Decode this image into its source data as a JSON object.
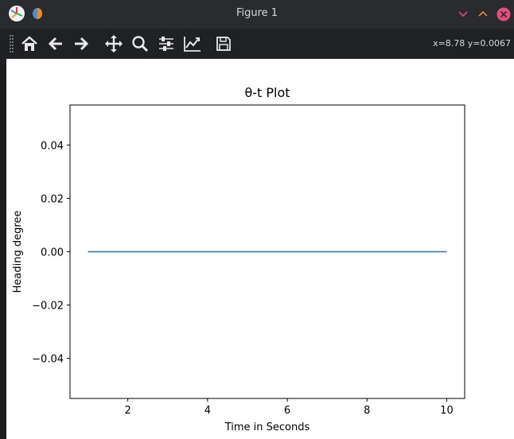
{
  "window": {
    "title": "Figure 1"
  },
  "toolbar": {
    "buttons": [
      {
        "name": "home-icon",
        "label": "Home"
      },
      {
        "name": "back-icon",
        "label": "Back"
      },
      {
        "name": "forward-icon",
        "label": "Forward"
      },
      {
        "name": "pan-icon",
        "label": "Pan"
      },
      {
        "name": "zoom-icon",
        "label": "Zoom"
      },
      {
        "name": "subplots-icon",
        "label": "Configure subplots"
      },
      {
        "name": "axes-icon",
        "label": "Edit axis"
      },
      {
        "name": "save-icon",
        "label": "Save"
      }
    ],
    "coords": "x=8.78 y=0.0067"
  },
  "colors": {
    "line": "#1f77b4",
    "titlebar": "#2a2b2e",
    "toolbar": "#202124",
    "close": "#d9534f"
  },
  "chart_data": {
    "type": "line",
    "title": "θ-t Plot",
    "xlabel": "Time in Seconds",
    "ylabel": "Heading degree",
    "xlim": [
      0.55,
      10.45
    ],
    "ylim": [
      -0.055,
      0.055
    ],
    "x_ticks": [
      2,
      4,
      6,
      8,
      10
    ],
    "x_tick_labels": [
      "2",
      "4",
      "6",
      "8",
      "10"
    ],
    "y_ticks": [
      0.04,
      0.02,
      0.0,
      -0.02,
      -0.04
    ],
    "y_tick_labels": [
      "0.04",
      "0.02",
      "0.00",
      "−0.02",
      "−0.04"
    ],
    "grid": false,
    "series": [
      {
        "x": [
          1,
          10
        ],
        "y": [
          0,
          0
        ]
      }
    ]
  }
}
